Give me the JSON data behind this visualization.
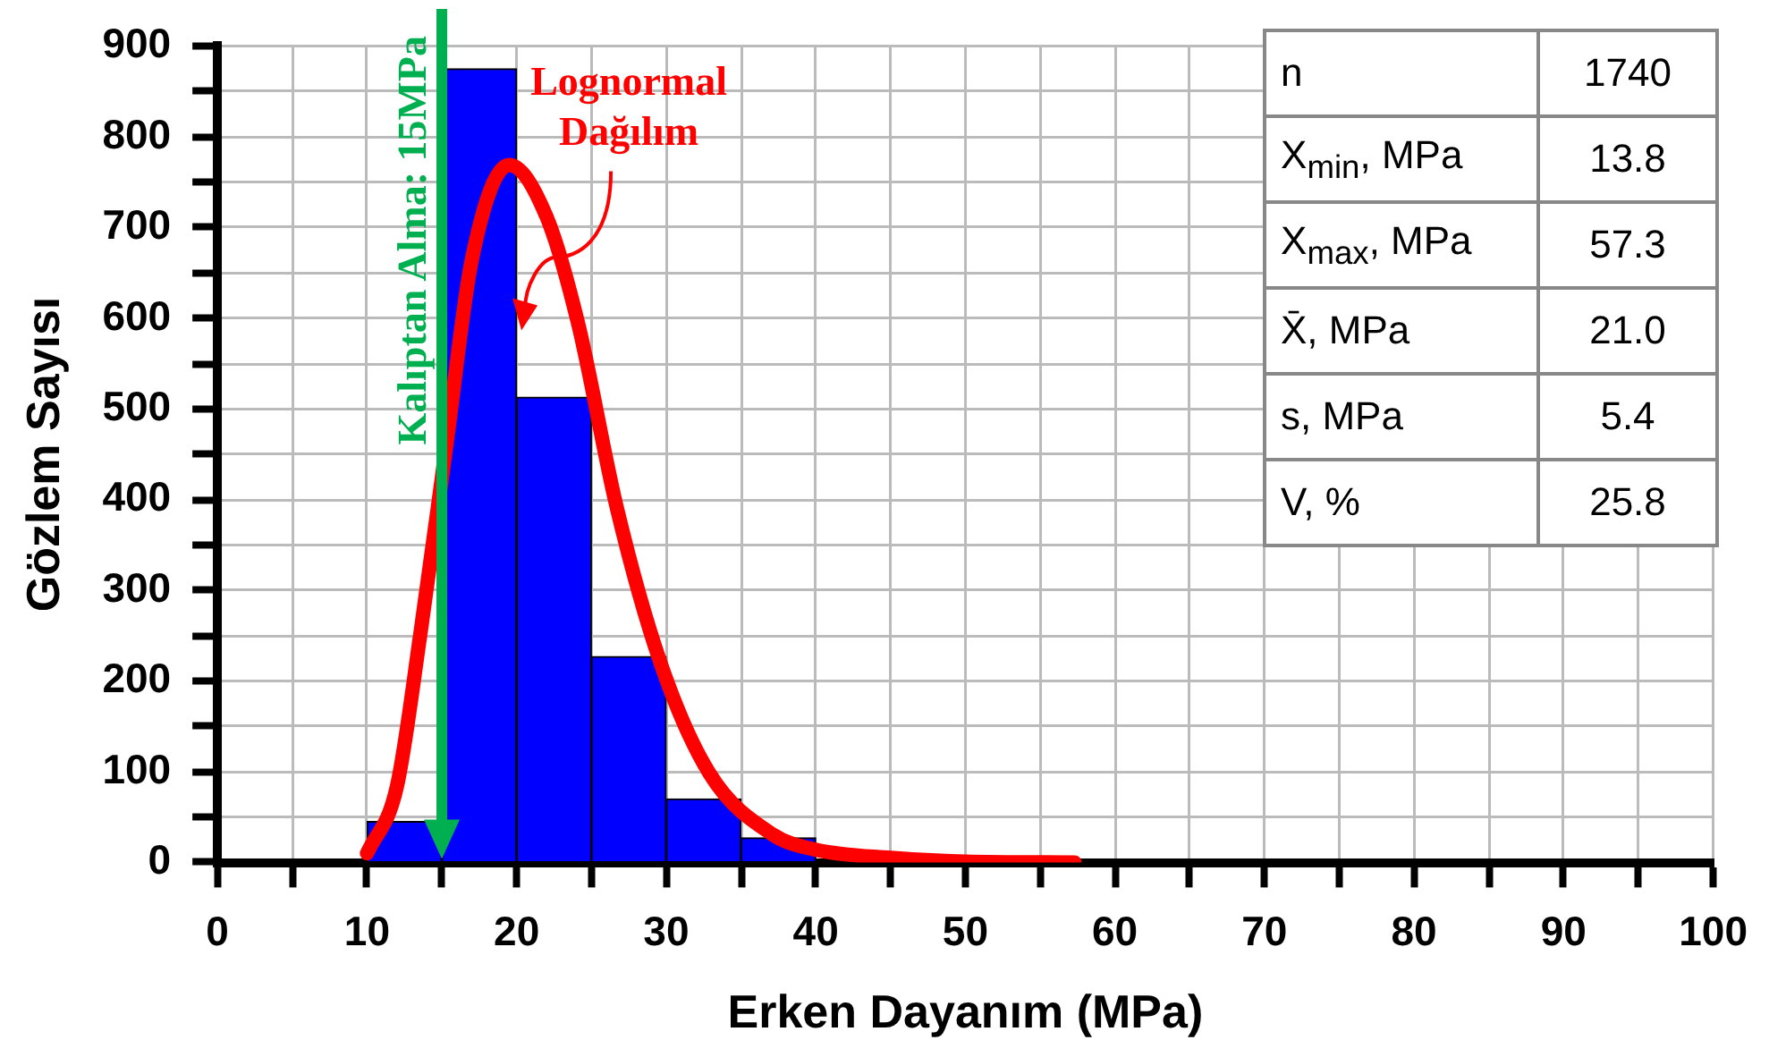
{
  "chart_data": {
    "type": "histogram",
    "xlabel": "Erken Dayanım (MPa)",
    "ylabel": "Gözlem Sayısı",
    "bins": [
      10,
      15,
      20,
      25,
      30,
      35,
      40,
      45
    ],
    "values": [
      45,
      875,
      513,
      227,
      70,
      27,
      null
    ],
    "color": "#0000ff",
    "series": [
      {
        "type": "line",
        "color": "#ff0000",
        "x": [
          10,
          12,
          13.6,
          15.3,
          17,
          19.5,
          22,
          24.1,
          26.7,
          29.6,
          32.9,
          37.1,
          40,
          45,
          50,
          57.3
        ],
        "values": [
          10,
          84,
          256,
          460,
          664,
          769,
          712,
          595,
          391,
          221,
          98,
          31,
          14,
          5,
          1,
          0
        ]
      }
    ],
    "xlim": [
      0,
      100
    ],
    "xticks": [
      0,
      {
        "value": 5,
        "label": null
      },
      10,
      {
        "value": 15,
        "label": null
      },
      20,
      {
        "value": 25,
        "label": null
      },
      30,
      {
        "value": 35,
        "label": null
      },
      40,
      {
        "value": 45,
        "label": null
      },
      50,
      {
        "value": 55,
        "label": null
      },
      60,
      {
        "value": 65,
        "label": null
      },
      70,
      {
        "value": 75,
        "label": null
      },
      80,
      {
        "value": 85,
        "label": null
      },
      90,
      {
        "value": 95,
        "label": null
      },
      100
    ],
    "ylim": [
      0,
      900
    ],
    "yticks": [
      0,
      {
        "value": 50,
        "label": null
      },
      100,
      {
        "value": 150,
        "label": null
      },
      200,
      {
        "value": 250,
        "label": null
      },
      300,
      {
        "value": 350,
        "label": null
      },
      400,
      {
        "value": 450,
        "label": null
      },
      500,
      {
        "value": 550,
        "label": null
      },
      600,
      {
        "value": 650,
        "label": null
      },
      700,
      {
        "value": 750,
        "label": null
      },
      800,
      {
        "value": 850,
        "label": null
      },
      900
    ],
    "grid": true,
    "ref_lines": [
      {
        "axis": "x",
        "value": 15,
        "label": "Kalıptan Alma: 15MPa",
        "color": "#00b050"
      }
    ],
    "annotations": [
      "Lognormal Dağılım",
      "n",
      "1740",
      "X$_{min}$, MPa",
      "13.8",
      "X$_{max}$, MPa",
      "57.3",
      "X̄, MPa",
      "21.0",
      "s, MPa",
      "5.4",
      "V, %",
      "25.8"
    ]
  }
}
